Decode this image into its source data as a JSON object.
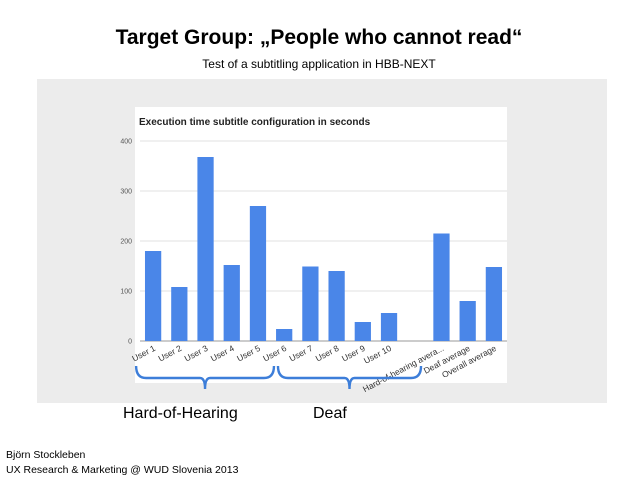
{
  "slide": {
    "title": "Target Group: „People who cannot read“",
    "subtitle": "Test of a subtitling application in HBB-NEXT",
    "group_labels": {
      "hard_of_hearing": "Hard-of-Hearing",
      "deaf": "Deaf"
    },
    "footer": {
      "author": "Björn Stockleben",
      "affiliation": "UX Research & Marketing @ WUD Slovenia 2013"
    }
  },
  "colors": {
    "bar": "#4a86e8",
    "bracket": "#3d7ed9",
    "panel": "#ececec",
    "plot_bg": "#ffffff"
  },
  "chart_data": {
    "type": "bar",
    "title": "Execution time subtitle configuration in seconds",
    "categories": [
      "User 1",
      "User 2",
      "User 3",
      "User 4",
      "User 5",
      "User 6",
      "User 7",
      "User 8",
      "User 9",
      "User 10",
      "",
      "Hard-of-hearing avera...",
      "Deaf average",
      "Overall average"
    ],
    "values": [
      180,
      108,
      368,
      152,
      270,
      24,
      149,
      140,
      38,
      56,
      null,
      215,
      80,
      148
    ],
    "yticks": [
      0,
      100,
      200,
      300,
      400
    ],
    "ylim": [
      0,
      400
    ],
    "grid": true,
    "legend": "none"
  }
}
